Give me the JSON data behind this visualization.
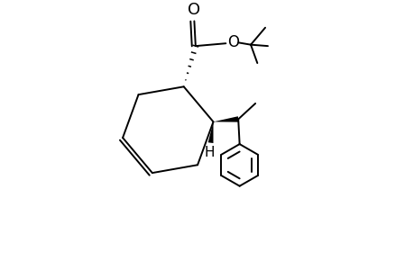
{
  "bg_color": "#ffffff",
  "line_color": "#000000",
  "line_width": 1.4,
  "fig_width": 4.6,
  "fig_height": 3.0,
  "dpi": 100,
  "xlim": [
    0.0,
    1.0
  ],
  "ylim": [
    0.0,
    1.0
  ]
}
